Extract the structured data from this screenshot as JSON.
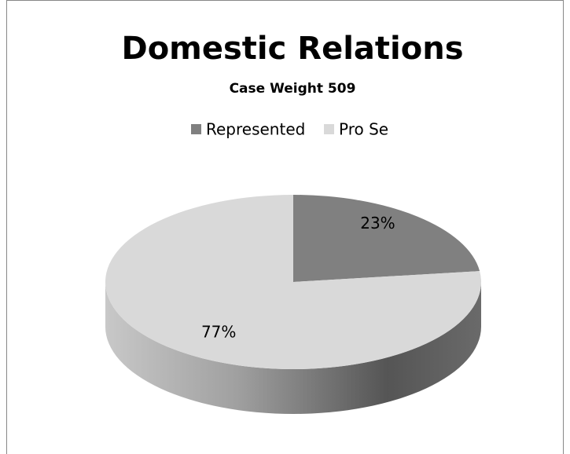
{
  "chart_data": {
    "type": "pie",
    "title": "Domestic Relations",
    "subtitle": "Case Weight 509",
    "categories": [
      "Represented",
      "Pro Se"
    ],
    "values": [
      23,
      77
    ],
    "value_labels": [
      "23%",
      "77%"
    ],
    "colors": [
      "#808080",
      "#d9d9d9"
    ],
    "legend": "top"
  }
}
